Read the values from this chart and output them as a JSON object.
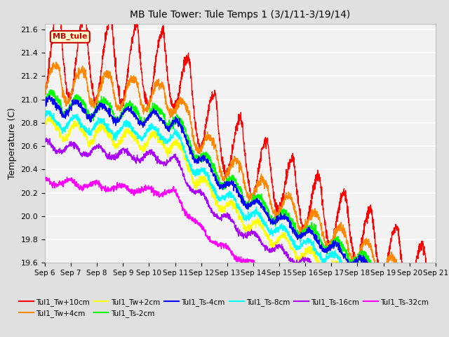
{
  "title": "MB Tule Tower: Tule Temps 1 (3/1/11-3/19/14)",
  "ylabel": "Temperature (C)",
  "xlim_days": [
    0,
    15
  ],
  "ylim": [
    19.6,
    21.65
  ],
  "yticks": [
    19.6,
    19.8,
    20.0,
    20.2,
    20.4,
    20.6,
    20.8,
    21.0,
    21.2,
    21.4,
    21.6
  ],
  "xtick_labels": [
    "Sep 6",
    "Sep 7",
    "Sep 8",
    "Sep 9",
    "Sep 10",
    "Sep 11",
    "Sep 12",
    "Sep 13",
    "Sep 14",
    "Sep 15",
    "Sep 16",
    "Sep 17",
    "Sep 18",
    "Sep 19",
    "Sep 20",
    "Sep 21"
  ],
  "series": [
    {
      "name": "Tul1_Tw+10cm",
      "color": "#ff0000",
      "base": 21.38,
      "decline": 0.115,
      "amp": 0.22,
      "amp_decay": 0.6,
      "phase": -0.4,
      "noise": 0.025,
      "spike_amp": 0.18
    },
    {
      "name": "Tul1_Tw+4cm",
      "color": "#ff8800",
      "base": 21.15,
      "decline": 0.105,
      "amp": 0.1,
      "amp_decay": 0.5,
      "phase": -0.2,
      "noise": 0.02,
      "spike_amp": 0.08
    },
    {
      "name": "Tul1_Tw+2cm",
      "color": "#ffff00",
      "base": 20.75,
      "decline": 0.092,
      "amp": 0.06,
      "amp_decay": 0.4,
      "phase": 0.1,
      "noise": 0.018,
      "spike_amp": 0.05
    },
    {
      "name": "Tul1_Ts-2cm",
      "color": "#00ff00",
      "base": 20.98,
      "decline": 0.095,
      "amp": 0.06,
      "amp_decay": 0.4,
      "phase": 0.0,
      "noise": 0.018,
      "spike_amp": 0.05
    },
    {
      "name": "Tul1_Ts-4cm",
      "color": "#0000ff",
      "base": 20.95,
      "decline": 0.095,
      "amp": 0.05,
      "amp_decay": 0.35,
      "phase": 0.1,
      "noise": 0.015,
      "spike_amp": 0.03
    },
    {
      "name": "Tul1_Ts-8cm",
      "color": "#00ffff",
      "base": 20.82,
      "decline": 0.09,
      "amp": 0.05,
      "amp_decay": 0.35,
      "phase": 0.2,
      "noise": 0.015,
      "spike_amp": 0.03
    },
    {
      "name": "Tul1_Ts-16cm",
      "color": "#aa00ff",
      "base": 20.6,
      "decline": 0.082,
      "amp": 0.04,
      "amp_decay": 0.3,
      "phase": 0.4,
      "noise": 0.012,
      "spike_amp": 0.02
    },
    {
      "name": "Tul1_Ts-32cm",
      "color": "#ff00ff",
      "base": 20.3,
      "decline": 0.07,
      "amp": 0.025,
      "amp_decay": 0.25,
      "phase": 0.6,
      "noise": 0.012,
      "spike_amp": 0.015
    }
  ],
  "legend_label": "MB_tule",
  "legend_box_facecolor": "#ffffcc",
  "legend_box_edgecolor": "#cc0000",
  "bg_color": "#e0e0e0",
  "plot_bg_color": "#f2f2f2",
  "grid_color": "#ffffff",
  "linewidth": 1.0
}
